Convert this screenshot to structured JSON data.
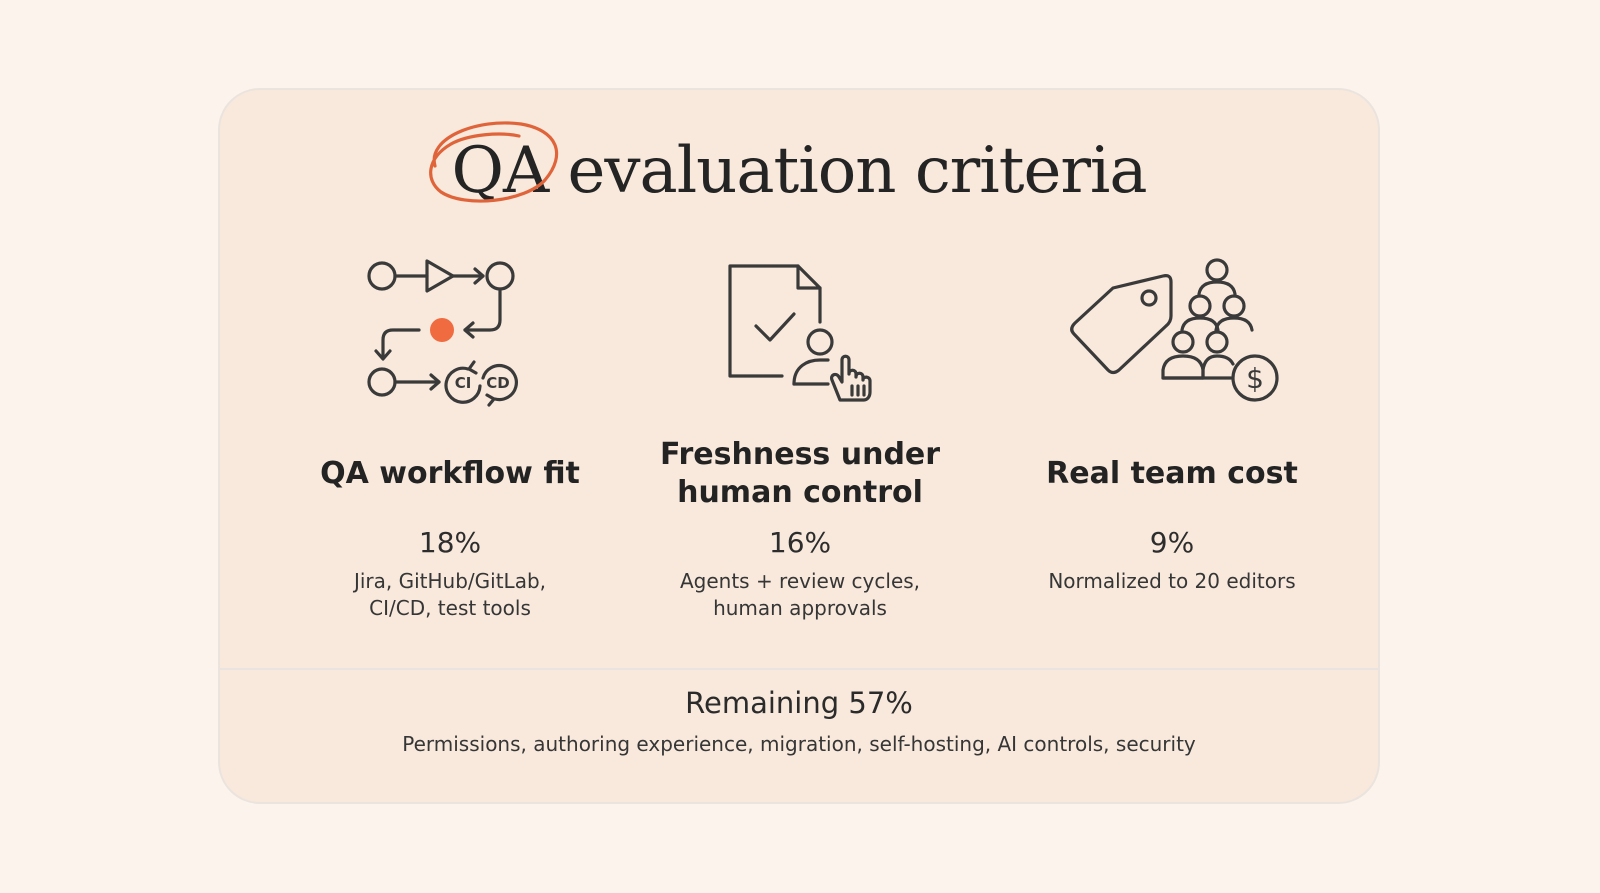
{
  "title": {
    "highlight": "QA",
    "rest": " evaluation criteria",
    "accent_color": "#e0643a"
  },
  "criteria": [
    {
      "icon": "workflow-cicd-icon",
      "heading": "QA workflow fit",
      "percent": "18%",
      "description": "Jira, GitHub/GitLab,\nCI/CD, test tools"
    },
    {
      "icon": "document-check-user-icon",
      "heading": "Freshness under\nhuman control",
      "percent": "16%",
      "description": "Agents + review cycles,\nhuman approvals"
    },
    {
      "icon": "price-tag-team-cost-icon",
      "heading": "Real team cost",
      "percent": "9%",
      "description": "Normalized to 20 editors"
    }
  ],
  "workflow_icon_labels": {
    "ci": "CI",
    "cd": "CD"
  },
  "cost_icon_symbol": "$",
  "remaining": {
    "title": "Remaining 57%",
    "description": "Permissions, authoring experience, migration, self-hosting, AI controls, security"
  },
  "colors": {
    "page_background": "#fbf3ec",
    "card_background": "#f8e9dc",
    "icon_stroke": "#3a3a3a",
    "accent": "#f06b40"
  }
}
